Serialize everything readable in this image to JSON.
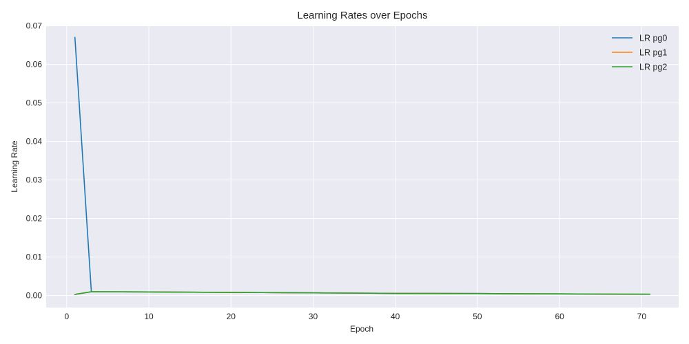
{
  "chart_data": {
    "type": "line",
    "title": "Learning Rates over Epochs",
    "xlabel": "Epoch",
    "ylabel": "Learning Rate",
    "xlim": [
      -2.5,
      74.5
    ],
    "ylim": [
      -0.0031,
      0.0701
    ],
    "xticks": [
      0,
      10,
      20,
      30,
      40,
      50,
      60,
      70
    ],
    "xtick_labels": [
      "0",
      "10",
      "20",
      "30",
      "40",
      "50",
      "60",
      "70"
    ],
    "yticks": [
      0.0,
      0.01,
      0.02,
      0.03,
      0.04,
      0.05,
      0.06,
      0.07
    ],
    "ytick_labels": [
      "0.00",
      "0.01",
      "0.02",
      "0.03",
      "0.04",
      "0.05",
      "0.06",
      "0.07"
    ],
    "grid": true,
    "legend_position": "top-right",
    "background_color": "#eaeaf2",
    "series": [
      {
        "name": "LR pg0",
        "color": "#1f77b4",
        "x": [
          1,
          3,
          10,
          20,
          30,
          40,
          50,
          60,
          71
        ],
        "y": [
          0.067,
          0.00099,
          0.00095,
          0.00083,
          0.00071,
          0.00058,
          0.00052,
          0.00043,
          0.00035
        ]
      },
      {
        "name": "LR pg1",
        "color": "#ff7f0e",
        "x": [
          1,
          3,
          10,
          20,
          30,
          40,
          50,
          60,
          71
        ],
        "y": [
          0.0003,
          0.00099,
          0.00095,
          0.00083,
          0.00071,
          0.00058,
          0.00052,
          0.00043,
          0.00035
        ]
      },
      {
        "name": "LR pg2",
        "color": "#2ca02c",
        "x": [
          1,
          3,
          10,
          20,
          30,
          40,
          50,
          60,
          71
        ],
        "y": [
          0.0003,
          0.00099,
          0.00095,
          0.00083,
          0.00071,
          0.00058,
          0.00052,
          0.00043,
          0.00035
        ]
      }
    ]
  }
}
